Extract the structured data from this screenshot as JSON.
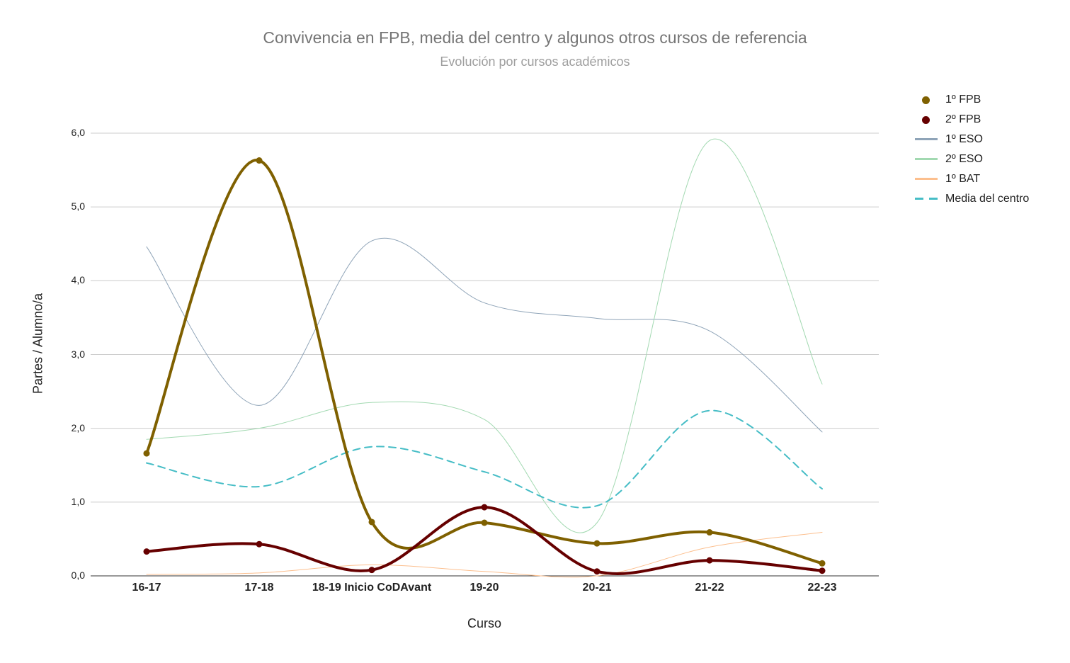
{
  "chart_data": {
    "type": "line",
    "title": "Convivencia en FPB, media del centro y algunos otros cursos de referencia",
    "subtitle": "Evolución por cursos académicos",
    "xlabel": "Curso",
    "ylabel": "Partes / Alumno/a",
    "ylim": [
      0,
      6
    ],
    "yticks": [
      "0,0",
      "1,0",
      "2,0",
      "3,0",
      "4,0",
      "5,0",
      "6,0"
    ],
    "grid": true,
    "legend_position": "right",
    "categories": [
      "16-17",
      "17-18",
      "18-19 Inicio CoDAvant",
      "19-20",
      "20-21",
      "21-22",
      "22-23"
    ],
    "series": [
      {
        "name": "1º ESO",
        "color": "#8fa4b8",
        "width": 1,
        "dash": false,
        "markers": false,
        "values": [
          4.46,
          2.31,
          4.54,
          3.7,
          3.49,
          3.32,
          1.95
        ]
      },
      {
        "name": "2º ESO",
        "color": "#a2d9b1",
        "width": 1,
        "dash": false,
        "markers": false,
        "values": [
          1.85,
          2.0,
          2.35,
          2.12,
          0.72,
          5.9,
          2.6
        ]
      },
      {
        "name": "1º BAT",
        "color": "#fcbf8e",
        "width": 1,
        "dash": false,
        "markers": false,
        "values": [
          0.02,
          0.04,
          0.15,
          0.06,
          0.0,
          0.39,
          0.59
        ]
      },
      {
        "name": "Media del centro",
        "color": "#46bdc6",
        "width": 2,
        "dash": true,
        "markers": false,
        "values": [
          1.53,
          1.21,
          1.75,
          1.41,
          0.95,
          2.24,
          1.18
        ]
      },
      {
        "name": "1º FPB",
        "color": "#7f6000",
        "width": 4,
        "dash": false,
        "markers": true,
        "values": [
          1.66,
          5.63,
          0.73,
          0.72,
          0.44,
          0.59,
          0.17
        ]
      },
      {
        "name": "2º FPB",
        "color": "#660000",
        "width": 4,
        "dash": false,
        "markers": true,
        "values": [
          0.33,
          0.43,
          0.08,
          0.93,
          0.06,
          0.21,
          0.07
        ]
      }
    ]
  },
  "legend": [
    {
      "label": "1º FPB",
      "color": "#7f6000",
      "type": "dot"
    },
    {
      "label": "2º FPB",
      "color": "#660000",
      "type": "dot"
    },
    {
      "label": "1º ESO",
      "color": "#8fa4b8",
      "type": "line"
    },
    {
      "label": "2º ESO",
      "color": "#a2d9b1",
      "type": "line"
    },
    {
      "label": "1º BAT",
      "color": "#fcbf8e",
      "type": "line"
    },
    {
      "label": "Media del centro",
      "color": "#46bdc6",
      "type": "dash"
    }
  ]
}
